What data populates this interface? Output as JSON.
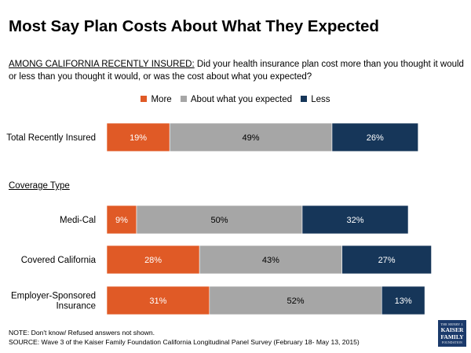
{
  "title": "Most Say Plan Costs About What They Expected",
  "question": {
    "label": "AMONG CALIFORNIA RECENTLY INSURED:",
    "text": " Did your health insurance plan cost more than you thought it would or less than you thought it would, or was the cost about what you expected?"
  },
  "legend": [
    {
      "name": "More",
      "color": "#e05a26"
    },
    {
      "name": "About what you expected",
      "color": "#a6a6a6"
    },
    {
      "name": "Less",
      "color": "#163659"
    }
  ],
  "section_label": "Coverage Type",
  "chart_data": {
    "type": "bar",
    "orientation": "horizontal",
    "stacked": true,
    "categories": [
      "Total Recently Insured",
      "Medi-Cal",
      "Covered California",
      "Employer-Sponsored Insurance"
    ],
    "category_labels": [
      [
        "Total Recently Insured"
      ],
      [
        "Medi-Cal"
      ],
      [
        "Covered California"
      ],
      [
        "Employer-Sponsored",
        "Insurance"
      ]
    ],
    "series": [
      {
        "name": "More",
        "color": "#e05a26",
        "values": [
          19,
          9,
          28,
          31
        ],
        "labels": [
          "19%",
          "9%",
          "28%",
          "31%"
        ]
      },
      {
        "name": "About what you expected",
        "color": "#a6a6a6",
        "values": [
          49,
          50,
          43,
          52
        ],
        "labels": [
          "49%",
          "50%",
          "43%",
          "52%"
        ]
      },
      {
        "name": "Less",
        "color": "#163659",
        "values": [
          26,
          32,
          27,
          13
        ],
        "labels": [
          "26%",
          "32%",
          "27%",
          "13%"
        ]
      }
    ],
    "units": "%",
    "xlim": [
      0,
      100
    ],
    "legend_position": "top-center",
    "grid": false
  },
  "notes": [
    "NOTE: Don't know/ Refused answers not shown.",
    "SOURCE: Wave 3 of the Kaiser Family Foundation California Longitudinal Panel Survey (February 18- May 13, 2015)"
  ],
  "logo": {
    "line1": "THE HENRY J.",
    "line2": "KAISER",
    "line3": "FAMILY",
    "line4": "FOUNDATION"
  }
}
